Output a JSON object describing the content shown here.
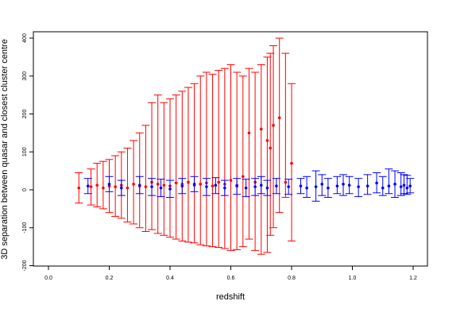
{
  "chart_data": {
    "type": "scatter",
    "xlabel": "redshift",
    "ylabel": "3D separation between quasar and closest cluster centre",
    "xlim": [
      -0.05,
      1.23
    ],
    "ylim": [
      -205,
      410
    ],
    "xticks": [
      0.0,
      0.2,
      0.4,
      0.6,
      0.8,
      1.0,
      1.2
    ],
    "xtick_labels": [
      "0.0",
      "0.2",
      "0.4",
      "0.6",
      "0.8",
      "1.0",
      "1.2"
    ],
    "yticks": [
      -200,
      -100,
      0,
      100,
      200,
      300,
      400
    ],
    "ytick_labels": [
      "-200",
      "-100",
      "0",
      "100",
      "200",
      "300",
      "400"
    ],
    "grid": false,
    "legend": "none",
    "colors": {
      "red_series": "#ff0000",
      "blue_series": "#0000ff",
      "axis": "#000000"
    },
    "series": [
      {
        "color": "#ff0000",
        "points": [
          {
            "x": 0.1,
            "y": 5,
            "low": -35,
            "high": 45
          },
          {
            "x": 0.14,
            "y": 8,
            "low": -40,
            "high": 55
          },
          {
            "x": 0.16,
            "y": 12,
            "low": -45,
            "high": 70
          },
          {
            "x": 0.18,
            "y": 5,
            "low": -50,
            "high": 75
          },
          {
            "x": 0.2,
            "y": 10,
            "low": -60,
            "high": 80
          },
          {
            "x": 0.22,
            "y": 8,
            "low": -70,
            "high": 90
          },
          {
            "x": 0.24,
            "y": 12,
            "low": -75,
            "high": 100
          },
          {
            "x": 0.26,
            "y": 5,
            "low": -85,
            "high": 110
          },
          {
            "x": 0.28,
            "y": 15,
            "low": -90,
            "high": 130
          },
          {
            "x": 0.3,
            "y": 10,
            "low": -100,
            "high": 150
          },
          {
            "x": 0.32,
            "y": 8,
            "low": -110,
            "high": 170
          },
          {
            "x": 0.34,
            "y": 20,
            "low": -105,
            "high": 230
          },
          {
            "x": 0.36,
            "y": 15,
            "low": -115,
            "high": 250
          },
          {
            "x": 0.38,
            "y": 12,
            "low": -120,
            "high": 230
          },
          {
            "x": 0.4,
            "y": 10,
            "low": -125,
            "high": 240
          },
          {
            "x": 0.42,
            "y": 18,
            "low": -130,
            "high": 250
          },
          {
            "x": 0.44,
            "y": 15,
            "low": -135,
            "high": 260
          },
          {
            "x": 0.46,
            "y": 20,
            "low": -138,
            "high": 270
          },
          {
            "x": 0.48,
            "y": 12,
            "low": -140,
            "high": 280
          },
          {
            "x": 0.5,
            "y": 15,
            "low": -145,
            "high": 300
          },
          {
            "x": 0.52,
            "y": 18,
            "low": -148,
            "high": 310
          },
          {
            "x": 0.54,
            "y": 10,
            "low": -150,
            "high": 305
          },
          {
            "x": 0.56,
            "y": 20,
            "low": -152,
            "high": 315
          },
          {
            "x": 0.58,
            "y": 15,
            "low": -155,
            "high": 320
          },
          {
            "x": 0.6,
            "y": 25,
            "low": -160,
            "high": 330
          },
          {
            "x": 0.62,
            "y": 12,
            "low": -158,
            "high": 310
          },
          {
            "x": 0.64,
            "y": 35,
            "low": -150,
            "high": 300
          },
          {
            "x": 0.66,
            "y": 150,
            "low": -130,
            "high": 320
          },
          {
            "x": 0.68,
            "y": 20,
            "low": -160,
            "high": 310
          },
          {
            "x": 0.7,
            "y": 160,
            "low": -170,
            "high": 330
          },
          {
            "x": 0.72,
            "y": 130,
            "low": -165,
            "high": 350
          },
          {
            "x": 0.73,
            "y": 110,
            "low": -120,
            "high": 360
          },
          {
            "x": 0.74,
            "y": 170,
            "low": -100,
            "high": 380
          },
          {
            "x": 0.76,
            "y": 190,
            "low": -60,
            "high": 400
          },
          {
            "x": 0.78,
            "y": 20,
            "low": -20,
            "high": 360
          },
          {
            "x": 0.8,
            "y": 70,
            "low": -135,
            "high": 280
          }
        ]
      },
      {
        "color": "#0000ff",
        "points": [
          {
            "x": 0.13,
            "y": 10,
            "low": -10,
            "high": 30
          },
          {
            "x": 0.2,
            "y": 15,
            "low": -5,
            "high": 35
          },
          {
            "x": 0.24,
            "y": 5,
            "low": -15,
            "high": 25
          },
          {
            "x": 0.3,
            "y": 12,
            "low": -10,
            "high": 35
          },
          {
            "x": 0.34,
            "y": 8,
            "low": -15,
            "high": 30
          },
          {
            "x": 0.37,
            "y": 5,
            "low": -18,
            "high": 28
          },
          {
            "x": 0.4,
            "y": 2,
            "low": -20,
            "high": 25
          },
          {
            "x": 0.44,
            "y": 10,
            "low": -10,
            "high": 30
          },
          {
            "x": 0.48,
            "y": 15,
            "low": -5,
            "high": 35
          },
          {
            "x": 0.52,
            "y": 8,
            "low": -15,
            "high": 30
          },
          {
            "x": 0.55,
            "y": 12,
            "low": -10,
            "high": 32
          },
          {
            "x": 0.58,
            "y": 5,
            "low": -15,
            "high": 25
          },
          {
            "x": 0.62,
            "y": 10,
            "low": -12,
            "high": 30
          },
          {
            "x": 0.65,
            "y": 5,
            "low": -18,
            "high": 28
          },
          {
            "x": 0.68,
            "y": 8,
            "low": -15,
            "high": 30
          },
          {
            "x": 0.7,
            "y": 12,
            "low": -10,
            "high": 35
          },
          {
            "x": 0.72,
            "y": 5,
            "low": -15,
            "high": 25
          },
          {
            "x": 0.75,
            "y": 10,
            "low": -10,
            "high": 30
          },
          {
            "x": 0.79,
            "y": 8,
            "low": -12,
            "high": 28
          },
          {
            "x": 0.83,
            "y": 10,
            "low": -10,
            "high": 30
          },
          {
            "x": 0.85,
            "y": 5,
            "low": -20,
            "high": 35
          },
          {
            "x": 0.88,
            "y": 8,
            "low": -30,
            "high": 50
          },
          {
            "x": 0.9,
            "y": 15,
            "low": -15,
            "high": 40
          },
          {
            "x": 0.92,
            "y": 5,
            "low": -20,
            "high": 30
          },
          {
            "x": 0.95,
            "y": 10,
            "low": -10,
            "high": 35
          },
          {
            "x": 0.97,
            "y": 15,
            "low": -15,
            "high": 40
          },
          {
            "x": 0.99,
            "y": 12,
            "low": -10,
            "high": 35
          },
          {
            "x": 1.02,
            "y": 8,
            "low": -18,
            "high": 30
          },
          {
            "x": 1.05,
            "y": 10,
            "low": -12,
            "high": 40
          },
          {
            "x": 1.08,
            "y": 18,
            "low": -8,
            "high": 45
          },
          {
            "x": 1.1,
            "y": 5,
            "low": -15,
            "high": 35
          },
          {
            "x": 1.12,
            "y": 10,
            "low": -10,
            "high": 55
          },
          {
            "x": 1.14,
            "y": 15,
            "low": -20,
            "high": 50
          },
          {
            "x": 1.16,
            "y": 8,
            "low": -15,
            "high": 45
          },
          {
            "x": 1.17,
            "y": 12,
            "low": -10,
            "high": 40
          },
          {
            "x": 1.18,
            "y": 5,
            "low": -12,
            "high": 38
          },
          {
            "x": 1.19,
            "y": 10,
            "low": -8,
            "high": 30
          }
        ]
      }
    ]
  }
}
